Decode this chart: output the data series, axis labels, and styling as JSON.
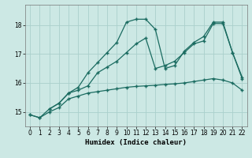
{
  "bg_color": "#cce8e4",
  "grid_color": "#aad0cc",
  "line_color": "#1a6b60",
  "xlabel": "Humidex (Indice chaleur)",
  "ylim": [
    14.5,
    18.7
  ],
  "xlim": [
    -0.5,
    22.5
  ],
  "yticks": [
    15,
    16,
    17,
    18
  ],
  "xticks": [
    0,
    1,
    2,
    3,
    4,
    5,
    6,
    7,
    8,
    9,
    10,
    11,
    12,
    13,
    14,
    15,
    16,
    17,
    18,
    19,
    20,
    21,
    22
  ],
  "line1_x": [
    0,
    1,
    2,
    3,
    4,
    5,
    6,
    7,
    8,
    9,
    10,
    11,
    12,
    13,
    14,
    15,
    16,
    17,
    18,
    19,
    20,
    21,
    22
  ],
  "line1_y": [
    14.9,
    14.8,
    15.0,
    15.15,
    15.45,
    15.55,
    15.65,
    15.7,
    15.75,
    15.8,
    15.85,
    15.88,
    15.9,
    15.92,
    15.95,
    15.97,
    16.0,
    16.05,
    16.1,
    16.15,
    16.1,
    16.0,
    15.75
  ],
  "line2_x": [
    0,
    1,
    2,
    3,
    4,
    5,
    6,
    7,
    8,
    9,
    10,
    11,
    12,
    13,
    14,
    15,
    16,
    17,
    18,
    19,
    20,
    21,
    22
  ],
  "line2_y": [
    14.9,
    14.8,
    15.1,
    15.3,
    15.65,
    15.75,
    15.9,
    16.35,
    16.55,
    16.75,
    17.05,
    17.35,
    17.55,
    16.5,
    16.6,
    16.75,
    17.05,
    17.35,
    17.45,
    18.05,
    18.05,
    17.05,
    16.15
  ],
  "line3_x": [
    2,
    3,
    4,
    5,
    6,
    7,
    8,
    9,
    10,
    11,
    12,
    13,
    14,
    15,
    16,
    17,
    18,
    19,
    20,
    21,
    22
  ],
  "line3_y": [
    15.1,
    15.3,
    15.65,
    15.85,
    16.35,
    16.7,
    17.05,
    17.4,
    18.1,
    18.2,
    18.2,
    17.85,
    16.5,
    16.6,
    17.1,
    17.4,
    17.6,
    18.1,
    18.1,
    17.05,
    16.2
  ]
}
